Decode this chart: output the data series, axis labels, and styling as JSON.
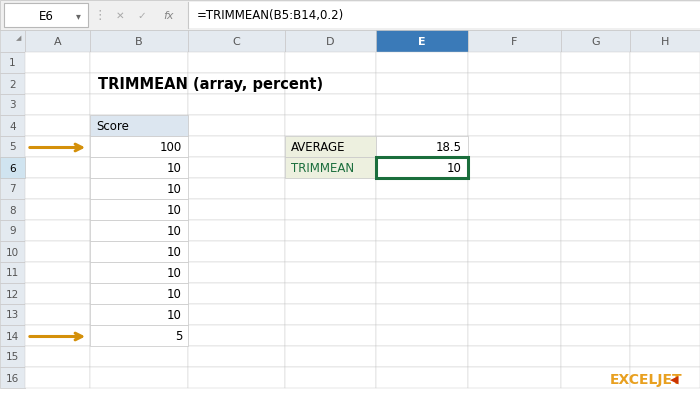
{
  "title": "TRIMMEAN (array, percent)",
  "formula_bar_cell": "E6",
  "formula_bar_formula": "=TRIMMEAN(B5:B14,0.2)",
  "col_headers": [
    "A",
    "B",
    "C",
    "D",
    "E",
    "F",
    "G",
    "H"
  ],
  "n_rows": 16,
  "score_header": "Score",
  "score_values": [
    100,
    10,
    10,
    10,
    10,
    10,
    10,
    10,
    10,
    5
  ],
  "score_rows": [
    5,
    6,
    7,
    8,
    9,
    10,
    11,
    12,
    13,
    14
  ],
  "result_labels": [
    "AVERAGE",
    "TRIMMEAN"
  ],
  "result_values": [
    "18.5",
    "10"
  ],
  "result_rows": [
    5,
    6
  ],
  "arrow_rows": [
    5,
    14
  ],
  "bg_color": "#ffffff",
  "outer_bg": "#f0f0f0",
  "grid_color": "#c8c8c8",
  "header_bg": "#e4eaf0",
  "header_text": "#555555",
  "col_e_header_bg": "#3a7ab8",
  "col_e_header_text": "#ffffff",
  "formula_bar_bg": "#f0f0f0",
  "formula_bar_border": "#c0c0c0",
  "cell_ref_bg": "#ffffff",
  "active_cell_border": "#1a6e3c",
  "result_label_bg": "#edf0df",
  "result_label_text": "#000000",
  "trimmean_label_text": "#1a6e3c",
  "arrow_color": "#d4900a",
  "title_fontsize": 10.5,
  "cell_fontsize": 8.5,
  "header_fontsize": 8,
  "row_num_fontsize": 7.5,
  "formula_fontsize": 8.5,
  "watermark_text": "EXCELJET",
  "watermark_color": "#e8a020",
  "watermark_arrow_color": "#cc3300",
  "watermark_fontsize": 10,
  "col_e_selected_bg": "#ddeeff"
}
